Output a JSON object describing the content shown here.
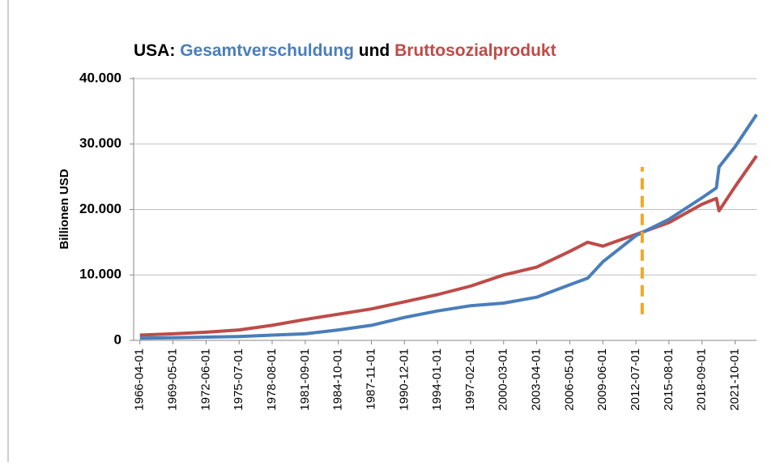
{
  "chart_data": {
    "type": "line",
    "title_prefix": "USA:",
    "title_joiner": "und",
    "ylabel": "Billionen USD",
    "x": [
      "1966-04-01",
      "1969-05-01",
      "1972-06-01",
      "1975-07-01",
      "1978-08-01",
      "1981-09-01",
      "1984-10-01",
      "1987-11-01",
      "1990-12-01",
      "1994-01-01",
      "1997-02-01",
      "2000-03-01",
      "2003-04-01",
      "2006-05-01",
      "2008-01-01",
      "2009-06-01",
      "2012-07-01",
      "2015-08-01",
      "2018-09-01",
      "2020-01-01",
      "2020-04-01",
      "2021-10-01",
      "2023-10-01"
    ],
    "series": [
      {
        "name": "Gesamtverschuldung",
        "color": "#4a7ebb",
        "values": [
          350,
          400,
          500,
          600,
          800,
          1000,
          1600,
          2300,
          3500,
          4500,
          5300,
          5700,
          6600,
          8500,
          9500,
          12000,
          16000,
          18500,
          21800,
          23300,
          26500,
          29600,
          34500
        ]
      },
      {
        "name": "Bruttosozialprodukt",
        "color": "#be4b48",
        "values": [
          800,
          1000,
          1250,
          1600,
          2300,
          3200,
          4000,
          4800,
          5900,
          7000,
          8300,
          10000,
          11200,
          13600,
          15000,
          14400,
          16200,
          18000,
          20800,
          21700,
          19800,
          23500,
          28200
        ]
      }
    ],
    "xlim": [
      "1965-09-01",
      "2023-10-01"
    ],
    "xticks": [
      "1966-04-01",
      "1969-05-01",
      "1972-06-01",
      "1975-07-01",
      "1978-08-01",
      "1981-09-01",
      "1984-10-01",
      "1987-11-01",
      "1990-12-01",
      "1994-01-01",
      "1997-02-01",
      "2000-03-01",
      "2003-04-01",
      "2006-05-01",
      "2009-06-01",
      "2012-07-01",
      "2015-08-01",
      "2018-09-01",
      "2021-10-01"
    ],
    "ylim": [
      0,
      40000
    ],
    "yticks": [
      0,
      {
        "value": 10000,
        "label": "10.000"
      },
      {
        "value": 20000,
        "label": "20.000"
      },
      {
        "value": 30000,
        "label": "30.000"
      },
      {
        "value": 40000,
        "label": "40.000"
      }
    ],
    "grid": true,
    "marker_line": {
      "x": "2013-02-01",
      "y": [
        4000,
        26500
      ],
      "color": "#f5a623"
    }
  }
}
